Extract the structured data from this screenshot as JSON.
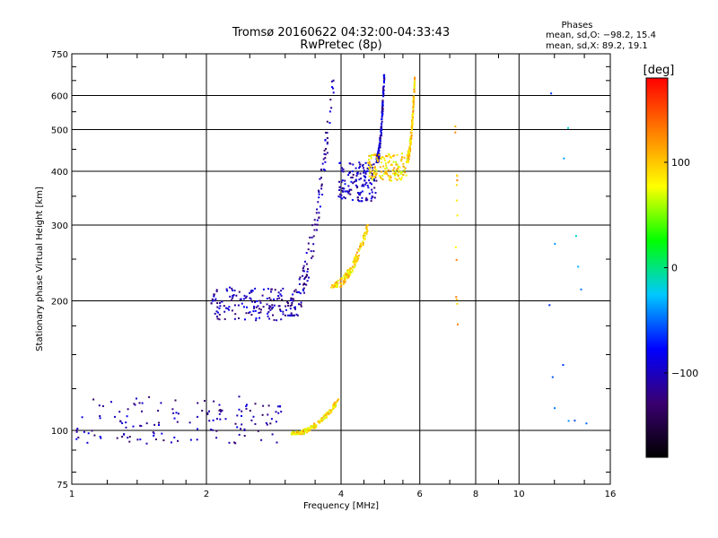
{
  "chart_data": {
    "type": "scatter",
    "title": "Tromsø 20160622 04:32:00-04:33:43",
    "subtitle": "RwPretec (8p)",
    "xlabel": "Frequency [MHz]",
    "ylabel": "Stationary phase Virtual Height [km]",
    "x_scale": "log",
    "y_scale": "log",
    "xlim": [
      1,
      16
    ],
    "ylim": [
      75,
      750
    ],
    "x_ticks": [
      "1",
      "2",
      "4",
      "6",
      "8",
      "10",
      "16"
    ],
    "x_major_grid": [
      2,
      4,
      6,
      8,
      10
    ],
    "y_ticks": [
      "75",
      "100",
      "200",
      "300",
      "400",
      "500",
      "600",
      "750"
    ],
    "y_major_grid": [
      100,
      200,
      300,
      400,
      500,
      600
    ],
    "grid": true,
    "phases_box": {
      "heading": "Phases",
      "line_o": "mean, sd,O: −98.2, 15.4",
      "line_x": "mean, sd,X:  89.2, 19.1"
    },
    "colorbar": {
      "label": "[deg]",
      "range": [
        -180,
        180
      ],
      "ticks": [
        "100",
        "0",
        "−100"
      ],
      "tick_values": [
        100,
        0,
        -100
      ],
      "colors": [
        "#000000",
        "#3a0070",
        "#0000ff",
        "#00c8ff",
        "#00ff00",
        "#ffff00",
        "#ff8000",
        "#ff0000"
      ]
    },
    "point_groups": [
      {
        "desc": "low E-region O trace",
        "x": [
          1.02,
          2.95
        ],
        "y": [
          93,
          120
        ],
        "phase": -110
      },
      {
        "desc": "E-region X trace",
        "x": [
          3.1,
          3.95
        ],
        "y": [
          98,
          118
        ],
        "phase": 90
      },
      {
        "desc": "F1 O trace low",
        "x": [
          2.05,
          3.0
        ],
        "y": [
          180,
          215
        ],
        "phase": -105
      },
      {
        "desc": "F O trace rising",
        "x": [
          3.0,
          3.85
        ],
        "y": [
          185,
          650
        ],
        "phase": -110
      },
      {
        "desc": "F O cusp",
        "x": [
          3.95,
          4.8
        ],
        "y": [
          340,
          420
        ],
        "phase": -100
      },
      {
        "desc": "F O upper",
        "x": [
          4.8,
          5.0
        ],
        "y": [
          420,
          680
        ],
        "phase": -100
      },
      {
        "desc": "F X trace",
        "x": [
          3.8,
          4.6
        ],
        "y": [
          215,
          300
        ],
        "phase": 95
      },
      {
        "desc": "F X cusp",
        "x": [
          4.6,
          5.6
        ],
        "y": [
          380,
          440
        ],
        "phase": 90
      },
      {
        "desc": "F X upper",
        "x": [
          5.6,
          5.85
        ],
        "y": [
          420,
          660
        ],
        "phase": 95
      },
      {
        "desc": "sparse column 7.2 MHz",
        "x": [
          7.2,
          7.3
        ],
        "y": [
          145,
          610
        ],
        "phase": 110
      },
      {
        "desc": "sparse high-frequency points",
        "x": [
          11.5,
          14.5
        ],
        "y": [
          85,
          640
        ],
        "phase": -40
      }
    ]
  }
}
